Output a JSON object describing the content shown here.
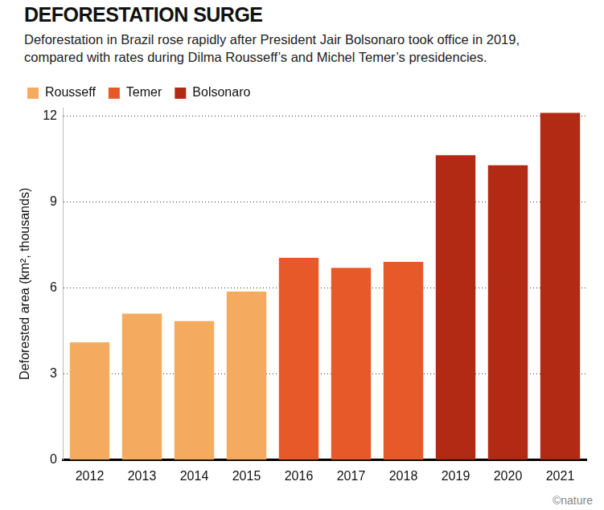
{
  "chart_data": {
    "type": "bar",
    "title": "DEFORESTATION SURGE",
    "subtitle": "Deforestation in Brazil rose rapidly after President Jair Bolsonaro took office in 2019, compared with rates during Dilma Rousseff’s and Michel Temer’s presidencies.",
    "y_label": "Deforested area (km², thousands)",
    "annotations": [
      "©nature"
    ],
    "categories": [
      "2012",
      "2013",
      "2014",
      "2015",
      "2016",
      "2017",
      "2018",
      "2019",
      "2020",
      "2021"
    ],
    "series": [
      {
        "name": "Rousseff",
        "color": "#f5ab5f",
        "values": [
          4.11,
          5.11,
          4.85,
          5.88,
          null,
          null,
          null,
          null,
          null,
          null
        ]
      },
      {
        "name": "Temer",
        "color": "#e8592a",
        "values": [
          null,
          null,
          null,
          null,
          7.06,
          6.71,
          6.92,
          null,
          null,
          null
        ]
      },
      {
        "name": "Bolsonaro",
        "color": "#b32a14",
        "values": [
          null,
          null,
          null,
          null,
          null,
          null,
          null,
          10.64,
          10.29,
          12.12
        ]
      }
    ],
    "ylim": [
      0,
      12.3
    ],
    "yticks": [
      0,
      3,
      6,
      9,
      12
    ],
    "grid": true,
    "legend": "top-left"
  }
}
